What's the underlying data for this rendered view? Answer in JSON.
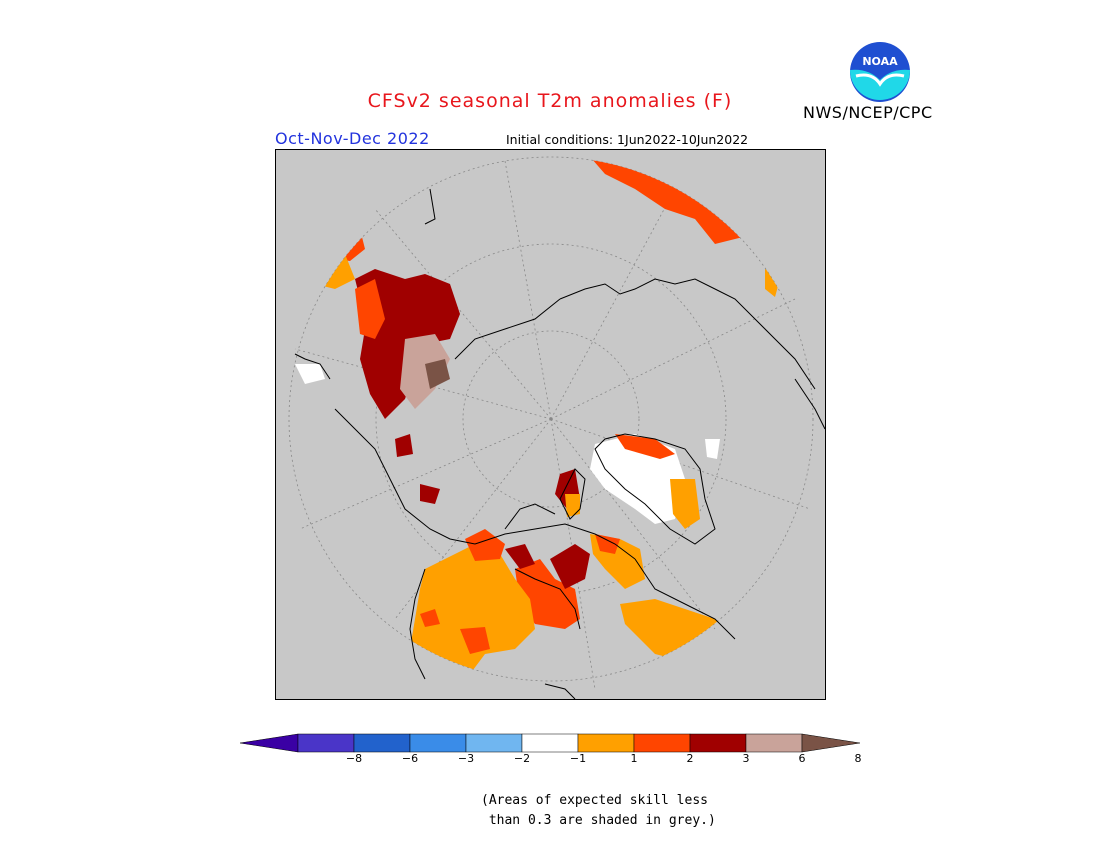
{
  "title": "CFSv2 seasonal T2m anomalies (F)",
  "period": "Oct-Nov-Dec 2022",
  "initial_conditions": "Initial conditions: 1Jun2022-10Jun2022",
  "agency": "NWS/NCEP/CPC",
  "logo_text": "NOAA",
  "map": {
    "background_color": "#c8c8c8",
    "grid": true,
    "projection": "north-polar-stereographic"
  },
  "colorbar": {
    "ticks": [
      "-8",
      "-6",
      "-3",
      "-2",
      "-1",
      "1",
      "2",
      "3",
      "6",
      "8"
    ],
    "colors": [
      "#3a00a4",
      "#4a35c8",
      "#2262cc",
      "#3a8ce8",
      "#70b6f0",
      "#ffffff",
      "#ffa000",
      "#ff4500",
      "#a00000",
      "#c9a39a",
      "#7a5346"
    ]
  },
  "legend_colors": {
    "white": "#ffffff",
    "orange": "#ffa000",
    "red_orange": "#ff4500",
    "dark_red": "#a00000",
    "pink_brown": "#c9a39a",
    "brown": "#7a5346"
  },
  "note": "(Areas of expected skill less\n than 0.3 are shaded in grey.)"
}
